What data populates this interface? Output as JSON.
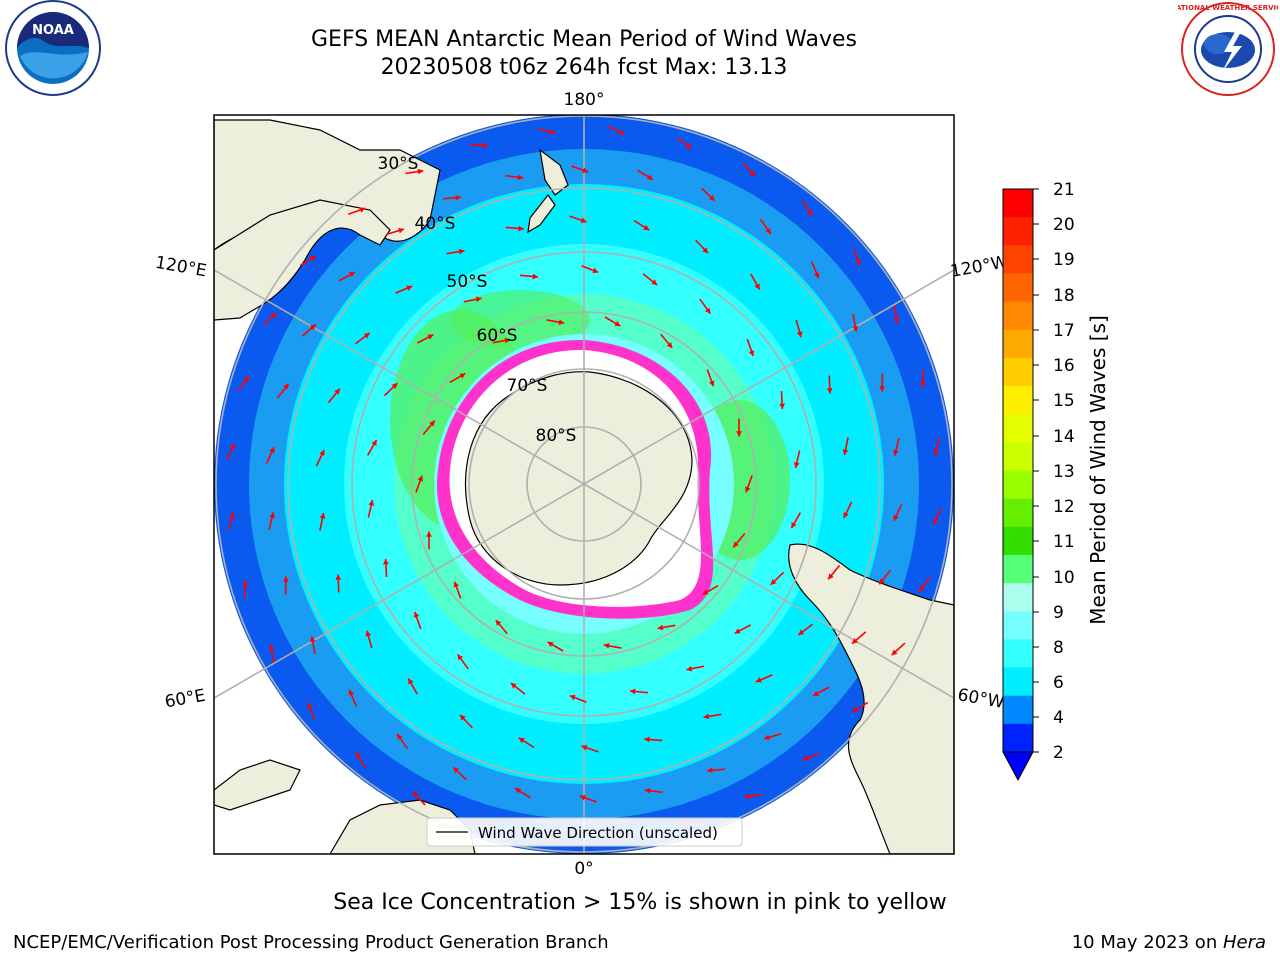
{
  "title": {
    "line1": "GEFS MEAN Antarctic Mean Period of Wind Waves",
    "line2": "20230508 t06z 264h fcst   Max: 13.13"
  },
  "logos": {
    "noaa": "NOAA",
    "nws": "NATIONAL WEATHER SERVICE"
  },
  "map": {
    "projection": "south-polar-stereographic",
    "longitude_labels": [
      "180°",
      "120°E",
      "120°W",
      "60°E",
      "60°W",
      "0°"
    ],
    "latitude_labels": [
      "30°S",
      "40°S",
      "50°S",
      "60°S",
      "70°S",
      "80°S"
    ],
    "legend_label": "Wind Wave Direction (unscaled)",
    "arrow_color": "#ff0000",
    "land_color": "#eeeedc",
    "sea_ice_colors": [
      "#ff33cc",
      "#ffee55"
    ]
  },
  "colorbar": {
    "label": "Mean Period of Wind Waves [s]",
    "ticks": [
      "21",
      "20",
      "19",
      "18",
      "17",
      "16",
      "15",
      "14",
      "13",
      "12",
      "11",
      "10",
      "9",
      "8",
      "6",
      "4",
      "2"
    ],
    "colors": [
      "#ff0000",
      "#ff2200",
      "#ff4400",
      "#ff6600",
      "#ff8800",
      "#ffaa00",
      "#ffcc00",
      "#ffee00",
      "#e6ff00",
      "#ccff00",
      "#99ff00",
      "#66ee00",
      "#33dd00",
      "#55ff77",
      "#aaffee",
      "#77ffff",
      "#33ffff",
      "#00eeff",
      "#0088ff",
      "#0022ff"
    ]
  },
  "footer": {
    "note": "Sea Ice Concentration > 15% is shown in pink to yellow",
    "credit": "NCEP/EMC/Verification Post Processing Product Generation Branch",
    "date_prefix": "10 May 2023 on ",
    "machine": "Hera"
  }
}
